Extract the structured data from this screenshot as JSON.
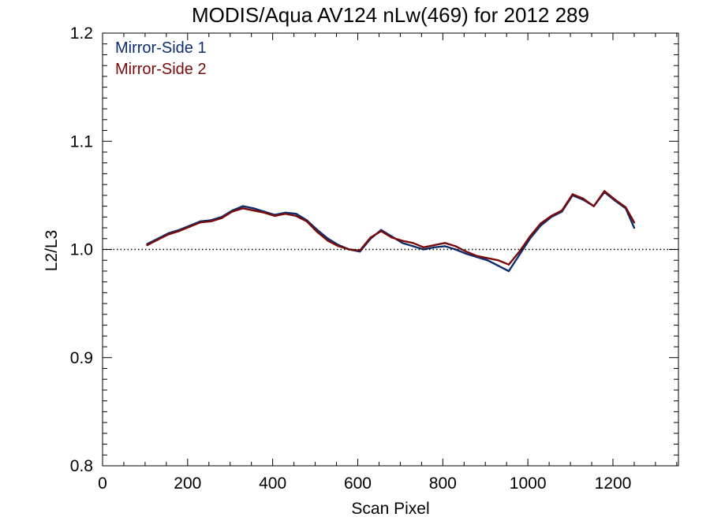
{
  "chart_data": {
    "type": "line",
    "title": "MODIS/Aqua AV124 nLw(469) for 2012 289",
    "xlabel": "Scan Pixel",
    "ylabel": "L2/L3",
    "xlim": [
      0,
      1354
    ],
    "ylim": [
      0.8,
      1.2
    ],
    "x_ticks": [
      0,
      200,
      400,
      600,
      800,
      1000,
      1200
    ],
    "x_tick_labels": [
      "0",
      "200",
      "400",
      "600",
      "800",
      "1000",
      "1200"
    ],
    "y_ticks": [
      0.8,
      0.9,
      1.0,
      1.1,
      1.2
    ],
    "y_tick_labels": [
      "0.8",
      "0.9",
      "1.0",
      "1.1",
      "1.2"
    ],
    "reference_line": {
      "y": 1.0,
      "style": "dotted"
    },
    "grid": false,
    "legend_position": "top-left",
    "x": [
      105,
      130,
      155,
      180,
      205,
      230,
      255,
      280,
      305,
      330,
      355,
      380,
      405,
      430,
      455,
      480,
      505,
      530,
      555,
      580,
      605,
      630,
      655,
      680,
      705,
      730,
      755,
      780,
      805,
      830,
      855,
      880,
      905,
      930,
      955,
      980,
      1005,
      1030,
      1055,
      1080,
      1105,
      1130,
      1155,
      1180,
      1205,
      1230,
      1250
    ],
    "series": [
      {
        "name": "Mirror-Side 1",
        "color": "#0d2e6e",
        "values": [
          1.005,
          1.01,
          1.015,
          1.018,
          1.022,
          1.026,
          1.027,
          1.03,
          1.036,
          1.04,
          1.038,
          1.035,
          1.032,
          1.034,
          1.033,
          1.027,
          1.018,
          1.01,
          1.004,
          1.0,
          0.998,
          1.01,
          1.018,
          1.012,
          1.006,
          1.003,
          1.0,
          1.002,
          1.003,
          1.0,
          0.996,
          0.993,
          0.99,
          0.985,
          0.98,
          0.995,
          1.01,
          1.022,
          1.03,
          1.035,
          1.05,
          1.046,
          1.04,
          1.053,
          1.045,
          1.038,
          1.02
        ]
      },
      {
        "name": "Mirror-Side 2",
        "color": "#7a0a0a",
        "values": [
          1.004,
          1.009,
          1.014,
          1.017,
          1.021,
          1.025,
          1.026,
          1.029,
          1.035,
          1.038,
          1.036,
          1.034,
          1.031,
          1.033,
          1.031,
          1.026,
          1.016,
          1.008,
          1.003,
          1.0,
          0.999,
          1.011,
          1.017,
          1.011,
          1.008,
          1.006,
          1.002,
          1.004,
          1.006,
          1.003,
          0.998,
          0.994,
          0.992,
          0.99,
          0.986,
          0.998,
          1.012,
          1.024,
          1.031,
          1.036,
          1.051,
          1.047,
          1.04,
          1.054,
          1.046,
          1.039,
          1.025
        ]
      }
    ]
  }
}
